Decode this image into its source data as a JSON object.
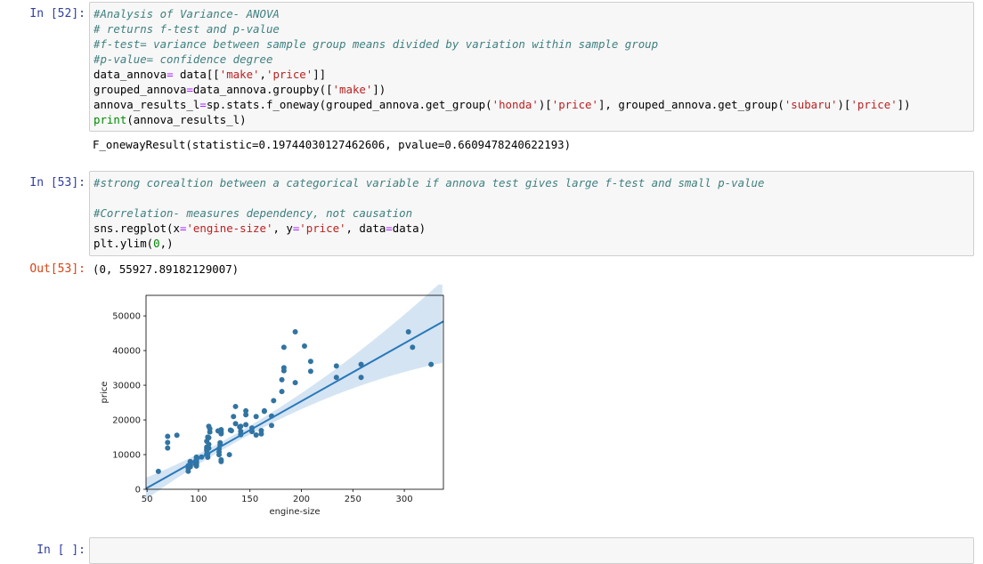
{
  "cells": {
    "c52": {
      "prompt": "In [52]:",
      "lines": [
        [
          {
            "t": "#Analysis of Variance- ANOVA",
            "c": "cm"
          }
        ],
        [
          {
            "t": "# returns f-test and p-value",
            "c": "cm"
          }
        ],
        [
          {
            "t": "#f-test= variance between sample group means divided by variation within sample group",
            "c": "cm"
          }
        ],
        [
          {
            "t": "#p-value= confidence degree",
            "c": "cm"
          }
        ],
        [
          {
            "t": "data_annova",
            "c": ""
          },
          {
            "t": "=",
            "c": "op"
          },
          {
            "t": " data[[",
            "c": ""
          },
          {
            "t": "'make'",
            "c": "st"
          },
          {
            "t": ",",
            "c": ""
          },
          {
            "t": "'price'",
            "c": "st"
          },
          {
            "t": "]]",
            "c": ""
          }
        ],
        [
          {
            "t": "grouped_annova",
            "c": ""
          },
          {
            "t": "=",
            "c": "op"
          },
          {
            "t": "data_annova.groupby([",
            "c": ""
          },
          {
            "t": "'make'",
            "c": "st"
          },
          {
            "t": "])",
            "c": ""
          }
        ],
        [
          {
            "t": "annova_results_l",
            "c": ""
          },
          {
            "t": "=",
            "c": "op"
          },
          {
            "t": "sp.stats.f_oneway(grouped_annova.get_group(",
            "c": ""
          },
          {
            "t": "'honda'",
            "c": "st"
          },
          {
            "t": ")[",
            "c": ""
          },
          {
            "t": "'price'",
            "c": "st"
          },
          {
            "t": "], grouped_annova.get_group(",
            "c": ""
          },
          {
            "t": "'subaru'",
            "c": "st"
          },
          {
            "t": ")[",
            "c": ""
          },
          {
            "t": "'price'",
            "c": "st"
          },
          {
            "t": "])",
            "c": ""
          }
        ],
        [
          {
            "t": "print",
            "c": "nm"
          },
          {
            "t": "(annova_results_l)",
            "c": ""
          }
        ]
      ],
      "output": "F_onewayResult(statistic=0.19744030127462606, pvalue=0.6609478240622193)"
    },
    "c53": {
      "prompt": "In [53]:",
      "lines": [
        [
          {
            "t": "#strong corealtion between a categorical variable if annova test gives large f-test and small p-value",
            "c": "cm"
          }
        ],
        [
          {
            "t": "",
            "c": ""
          }
        ],
        [
          {
            "t": "#Correlation- measures dependency, not causation",
            "c": "cm"
          }
        ],
        [
          {
            "t": "sns.regplot(x",
            "c": ""
          },
          {
            "t": "=",
            "c": "op"
          },
          {
            "t": "'engine-size'",
            "c": "st"
          },
          {
            "t": ", y",
            "c": ""
          },
          {
            "t": "=",
            "c": "op"
          },
          {
            "t": "'price'",
            "c": "st"
          },
          {
            "t": ", data",
            "c": ""
          },
          {
            "t": "=",
            "c": "op"
          },
          {
            "t": "data)",
            "c": ""
          }
        ],
        [
          {
            "t": "plt.ylim(",
            "c": ""
          },
          {
            "t": "0",
            "c": "nm"
          },
          {
            "t": ",)",
            "c": ""
          }
        ]
      ],
      "out_prompt": "Out[53]:",
      "output": "(0, 55927.89182129007)"
    },
    "next": {
      "prompt": "In [ ]:"
    }
  },
  "chart_data": {
    "type": "scatter",
    "xlabel": "engine-size",
    "ylabel": "price",
    "xlim": [
      49,
      338
    ],
    "ylim": [
      0,
      55927.89182129007
    ],
    "xticks": [
      50,
      100,
      150,
      200,
      250,
      300
    ],
    "yticks": [
      0,
      10000,
      20000,
      30000,
      40000,
      50000
    ],
    "regression": {
      "slope": 166.86,
      "intercept": -7963.34
    },
    "colors": {
      "points": "#3274a1",
      "line": "#2a78b8",
      "band": "#c6dbef"
    },
    "x": [
      61,
      70,
      70,
      70,
      79,
      90,
      90,
      90,
      92,
      92,
      92,
      92,
      92,
      97,
      97,
      97,
      98,
      98,
      98,
      98,
      98,
      98,
      98,
      103,
      108,
      108,
      108,
      108,
      108,
      109,
      109,
      109,
      110,
      110,
      110,
      110,
      111,
      111,
      119,
      120,
      120,
      120,
      121,
      121,
      122,
      122,
      122,
      122,
      122,
      130,
      131,
      132,
      134,
      136,
      136,
      140,
      141,
      141,
      141,
      146,
      146,
      146,
      152,
      152,
      156,
      156,
      161,
      161,
      164,
      164,
      171,
      171,
      173,
      181,
      181,
      183,
      183,
      183,
      194,
      194,
      203,
      209,
      209,
      234,
      234,
      258,
      258,
      304,
      308,
      326
    ],
    "y": [
      5151,
      13495,
      11900,
      15250,
      15580,
      5195,
      6095,
      6785,
      6855,
      6488,
      6918,
      7898,
      7999,
      7775,
      8028,
      7295,
      7609,
      8058,
      9095,
      8495,
      6692,
      7099,
      9279,
      9298,
      10198,
      11595,
      11259,
      12170,
      13845,
      15040,
      9233,
      10245,
      11850,
      12945,
      18150,
      14869,
      16500,
      17450,
      16845,
      9960,
      10795,
      11694,
      12764,
      13415,
      15998,
      16558,
      8495,
      17199,
      7975,
      9989,
      17075,
      16900,
      20970,
      23875,
      18920,
      17950,
      15750,
      18150,
      16695,
      22625,
      21485,
      18620,
      16630,
      17669,
      15645,
      20970,
      15985,
      16925,
      22470,
      22625,
      18399,
      21105,
      25552,
      28176,
      31600,
      34184,
      35056,
      40960,
      45400,
      30760,
      41315,
      36880,
      34028,
      32250,
      35550,
      36000,
      32250,
      45400,
      40960,
      36000
    ]
  }
}
